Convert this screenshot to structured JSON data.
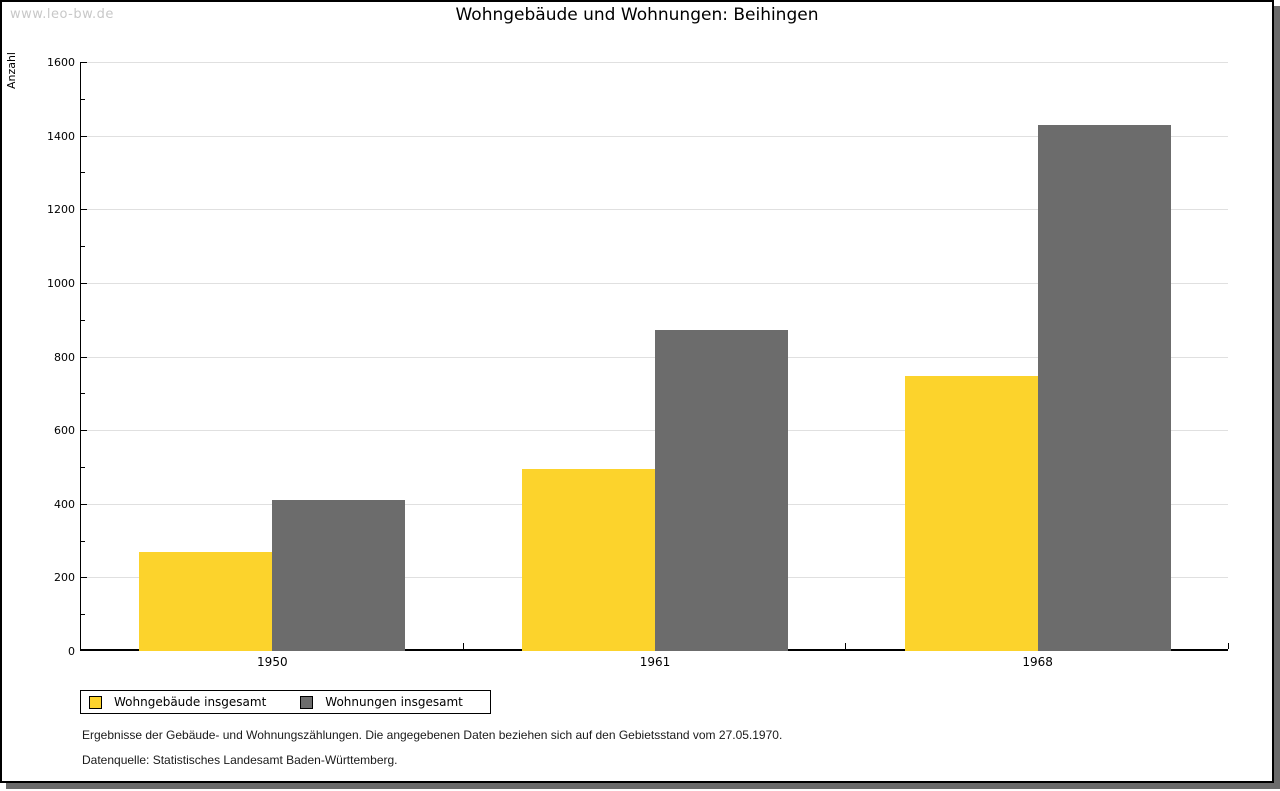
{
  "watermark": "www.leo-bw.de",
  "chart_data": {
    "type": "bar",
    "title": "Wohngebäude und Wohnungen: Beihingen",
    "ylabel": "Anzahl",
    "xlabel": "",
    "categories": [
      "1950",
      "1961",
      "1968"
    ],
    "series": [
      {
        "name": "Wohngebäude insgesamt",
        "color": "#FCD32C",
        "values": [
          268,
          495,
          747
        ]
      },
      {
        "name": "Wohnungen insgesamt",
        "color": "#6C6C6C",
        "values": [
          411,
          871,
          1428
        ]
      }
    ],
    "ylim": [
      0,
      1600
    ],
    "ytick_step": 200,
    "yminor_step": 100,
    "grid": true,
    "legend_position": "bottom-left"
  },
  "footnotes": {
    "line1": "Ergebnisse der Gebäude- und Wohnungszählungen. Die angegebenen Daten beziehen sich auf den Gebietsstand vom 27.05.1970.",
    "line2": "Datenquelle: Statistisches Landesamt Baden-Württemberg."
  },
  "colors": {
    "gridline": "#e0e0e0",
    "axis": "#000000",
    "watermark_text": "#c8c8c8",
    "frame_shadow": "#6b6b6b"
  }
}
